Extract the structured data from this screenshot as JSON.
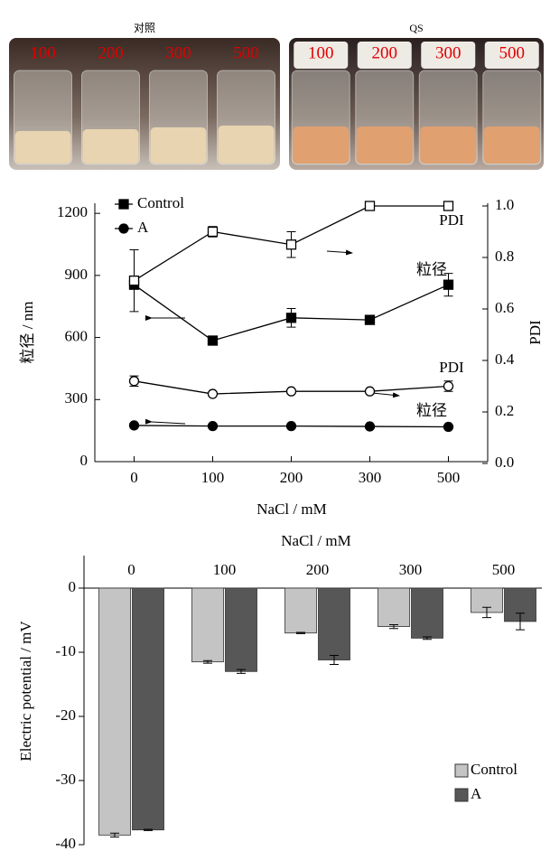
{
  "photos": [
    {
      "title": "对照",
      "labels": [
        "100",
        "200",
        "300",
        "500"
      ]
    },
    {
      "title": "QS",
      "labels": [
        "100",
        "200",
        "300",
        "500"
      ]
    }
  ],
  "chart_data": [
    {
      "type": "line",
      "xlabel": "NaCl / mM",
      "ylabel": "粒径 / nm",
      "y2label": "PDI",
      "categories": [
        "0",
        "100",
        "200",
        "300",
        "500"
      ],
      "ylim": [
        0,
        1240
      ],
      "yticks": [
        0,
        300,
        600,
        900,
        1200
      ],
      "y2lim": [
        0,
        1
      ],
      "y2ticks": [
        {
          "value": 0,
          "label": "0.0"
        },
        0.2,
        0.4,
        0.6,
        0.8,
        {
          "value": 1,
          "label": "1.0"
        }
      ],
      "legend": "upper left",
      "series": [
        {
          "name": "Control",
          "marker": "square",
          "color": "#000000",
          "values": [
            855,
            585,
            695,
            685,
            855
          ],
          "errors": [
            0,
            0,
            45,
            0,
            55
          ],
          "y2_values": [
            0.71,
            0.9,
            0.85,
            1.0,
            1.0
          ],
          "y2_errors": [
            0.12,
            0.02,
            0.05,
            0,
            0
          ]
        },
        {
          "name": "A",
          "marker": "circle",
          "color": "#000000",
          "values": [
            175,
            172,
            172,
            170,
            168
          ],
          "errors": [
            0,
            0,
            0,
            0,
            0
          ],
          "y2_values": [
            0.32,
            0.27,
            0.28,
            0.28,
            0.3
          ],
          "y2_errors": [
            0.02,
            0,
            0,
            0,
            0.02
          ]
        }
      ],
      "annotations": [
        "PDI",
        "粒径",
        "PDI",
        "粒径"
      ]
    },
    {
      "type": "bar",
      "xlabel": "NaCl / mM",
      "ylabel": "Electric potential / mV",
      "categories": [
        "0",
        "100",
        "200",
        "300",
        "500"
      ],
      "ylim": [
        -40,
        5
      ],
      "yticks": [
        -40,
        -30,
        -20,
        -10,
        0
      ],
      "legend": "lower right",
      "series": [
        {
          "name": "Control",
          "color": "#c4c4c4",
          "values": [
            -38.5,
            -11.5,
            -7.0,
            -6.0,
            -3.8
          ],
          "errors": [
            0.3,
            0.2,
            0.1,
            0.3,
            0.8
          ]
        },
        {
          "name": "A",
          "color": "#575757",
          "values": [
            -37.7,
            -13.0,
            -11.2,
            -7.8,
            -5.2
          ],
          "errors": [
            0.1,
            0.3,
            0.7,
            0.2,
            1.3
          ]
        }
      ]
    }
  ]
}
